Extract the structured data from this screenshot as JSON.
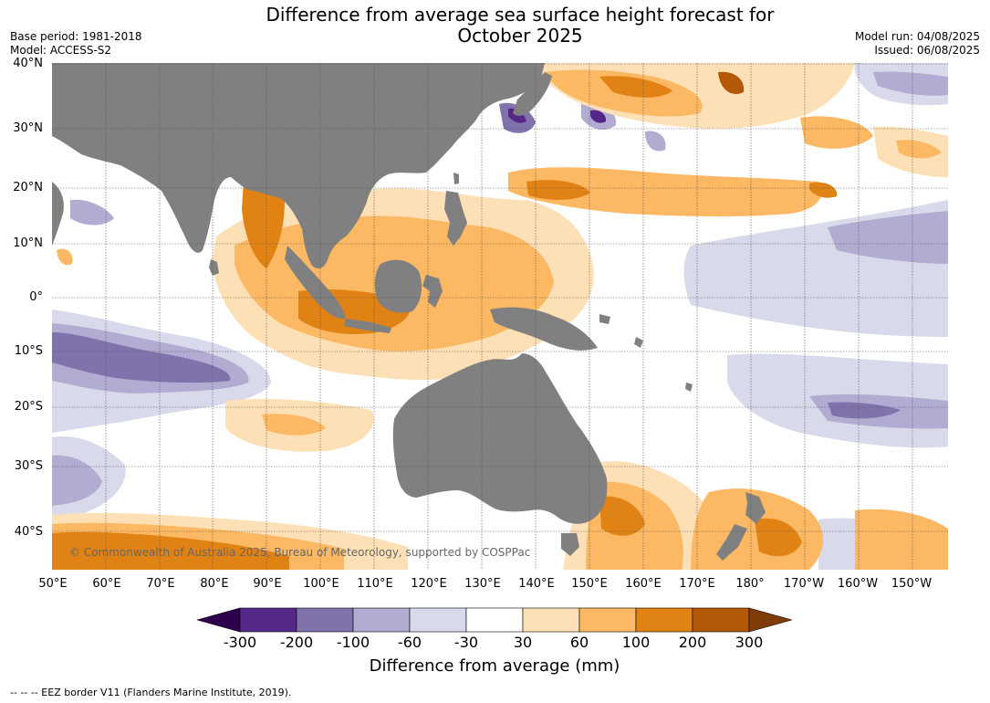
{
  "title_line1": "Difference from average sea surface height forecast for",
  "title_line2": "October 2025",
  "meta_left": {
    "base_period": "Base period: 1981-2018",
    "model": "Model: ACCESS-S2"
  },
  "meta_right": {
    "model_run": "Model run: 04/08/2025",
    "issued": "Issued: 06/08/2025"
  },
  "map": {
    "lat_labels": [
      "40°N",
      "30°N",
      "20°N",
      "10°N",
      "0°",
      "10°S",
      "20°S",
      "30°S",
      "40°S"
    ],
    "lon_labels": [
      "50°E",
      "60°E",
      "70°E",
      "80°E",
      "90°E",
      "100°E",
      "110°E",
      "120°E",
      "130°E",
      "140°E",
      "150°E",
      "160°E",
      "170°E",
      "180°",
      "170°W",
      "160°W",
      "150°W"
    ],
    "land_color": "#808080",
    "copyright": "© Commonwealth of Australia 2025, Bureau of Meteorology, supported by COSPPac"
  },
  "colorbar": {
    "ticks": [
      "-300",
      "-200",
      "-100",
      "-60",
      "-30",
      "30",
      "60",
      "100",
      "200",
      "300"
    ],
    "colors": [
      "#2d004b",
      "#542788",
      "#8073ac",
      "#b2abd2",
      "#d8daeb",
      "#ffffff",
      "#fee0b6",
      "#fdb863",
      "#e08214",
      "#b35806",
      "#7f3b08"
    ],
    "label": "Difference from average (mm)"
  },
  "footer": "--  --  -- EEZ border V11 (Flanders Marine Institute, 2019)."
}
